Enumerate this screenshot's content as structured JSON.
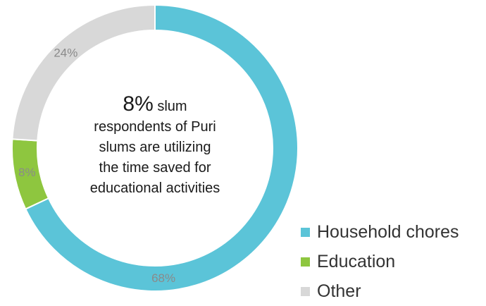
{
  "chart_data": {
    "type": "pie",
    "variant": "donut",
    "categories": [
      "Household chores",
      "Education",
      "Other"
    ],
    "values": [
      68,
      8,
      24
    ],
    "value_labels": [
      "68%",
      "8%",
      "24%"
    ],
    "colors": [
      "#5bc4d8",
      "#8ec63f",
      "#d8d8d8"
    ],
    "label_color": "#8a8a8a",
    "legend": {
      "placement": "bottom-right",
      "items": [
        "Household chores",
        "Education",
        "Other"
      ]
    },
    "center": {
      "highlight": "8%",
      "suffix": " slum",
      "lines": [
        "respondents of Puri",
        "slums are utilizing",
        "the time saved for",
        "educational activities"
      ]
    }
  }
}
